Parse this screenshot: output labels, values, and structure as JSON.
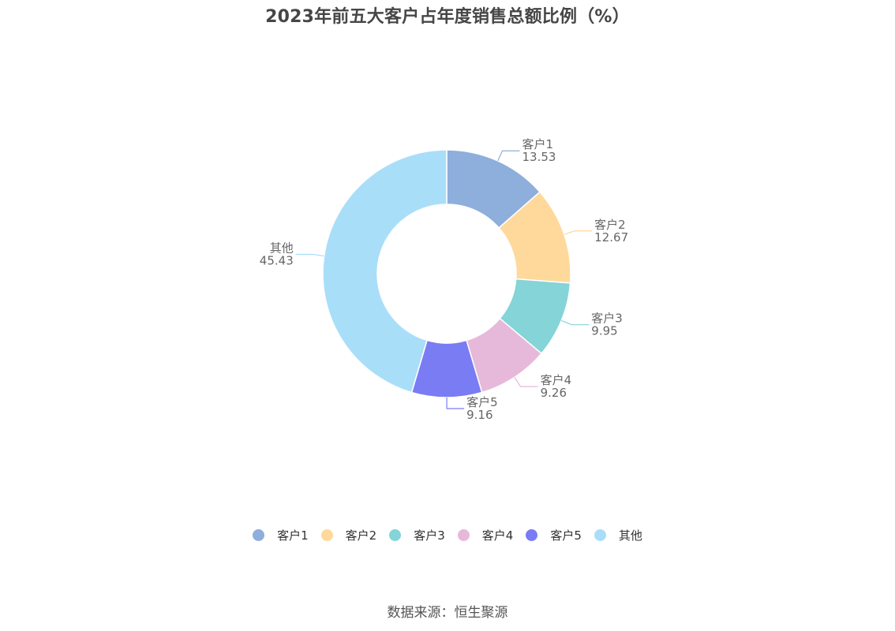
{
  "title": "2023年前五大客户占年度销售总额比例（%）",
  "source": "数据来源：恒生聚源",
  "chart_data": {
    "type": "pie",
    "variant": "donut",
    "title": "2023年前五大客户占年度销售总额比例（%）",
    "categories": [
      "客户1",
      "客户2",
      "客户3",
      "客户4",
      "客户5",
      "其他"
    ],
    "values": [
      13.53,
      12.67,
      9.95,
      9.26,
      9.16,
      45.43
    ],
    "value_labels": [
      "13.53",
      "12.67",
      "9.95",
      "9.26",
      "9.16",
      "45.43"
    ],
    "colors": [
      "#8eaedb",
      "#fed99b",
      "#84d4d8",
      "#e6b9da",
      "#7a7cf4",
      "#a9def9"
    ],
    "legend_position": "bottom"
  }
}
